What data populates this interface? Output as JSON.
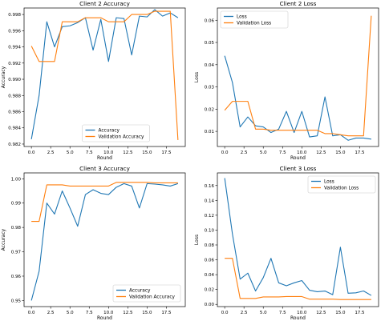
{
  "chart_data": [
    {
      "type": "line",
      "title": "Client 2 Accuracy",
      "xlabel": "Round",
      "ylabel": "Accuracy",
      "xlim": [
        -0.95,
        19.95
      ],
      "ylim": [
        0.9817,
        0.9988
      ],
      "xticks": [
        0.0,
        2.5,
        5.0,
        7.5,
        10.0,
        12.5,
        15.0,
        17.5
      ],
      "yticks": [
        0.982,
        0.984,
        0.986,
        0.988,
        0.99,
        0.992,
        0.994,
        0.996,
        0.998
      ],
      "xtick_labels": [
        "0.0",
        "2.5",
        "5.0",
        "7.5",
        "10.0",
        "12.5",
        "15.0",
        "17.5"
      ],
      "ytick_labels": [
        "0.982",
        "0.984",
        "0.986",
        "0.988",
        "0.990",
        "0.992",
        "0.994",
        "0.996",
        "0.998"
      ],
      "legend": "lower-center",
      "x": [
        0,
        1,
        2,
        3,
        4,
        5,
        6,
        7,
        8,
        9,
        10,
        11,
        12,
        13,
        14,
        15,
        16,
        17,
        18,
        19
      ],
      "series": [
        {
          "name": "Accuracy",
          "color": "#1f77b4",
          "values": [
            0.9826,
            0.988,
            0.9971,
            0.994,
            0.9965,
            0.9966,
            0.997,
            0.9976,
            0.9936,
            0.9974,
            0.9922,
            0.9976,
            0.9975,
            0.993,
            0.9978,
            0.9977,
            0.9986,
            0.9978,
            0.9982,
            0.9976
          ]
        },
        {
          "name": "Validation Accuracy",
          "color": "#ff7f0e",
          "values": [
            0.9941,
            0.9922,
            0.9922,
            0.9922,
            0.9971,
            0.9971,
            0.9971,
            0.9976,
            0.9976,
            0.9976,
            0.9971,
            0.9971,
            0.9971,
            0.998,
            0.998,
            0.998,
            0.9984,
            0.9984,
            0.9984,
            0.9825
          ]
        }
      ]
    },
    {
      "type": "line",
      "title": "Client 2 Loss",
      "xlabel": "Round",
      "ylabel": "Loss",
      "xlim": [
        -0.95,
        19.95
      ],
      "ylim": [
        0.0032,
        0.0655
      ],
      "xticks": [
        0.0,
        2.5,
        5.0,
        7.5,
        10.0,
        12.5,
        15.0,
        17.5
      ],
      "yticks": [
        0.01,
        0.02,
        0.03,
        0.04,
        0.05,
        0.06
      ],
      "xtick_labels": [
        "0.0",
        "2.5",
        "5.0",
        "7.5",
        "10.0",
        "12.5",
        "15.0",
        "17.5"
      ],
      "ytick_labels": [
        "0.01",
        "0.02",
        "0.03",
        "0.04",
        "0.05",
        "0.06"
      ],
      "legend": "top-left",
      "x": [
        0,
        1,
        2,
        3,
        4,
        5,
        6,
        7,
        8,
        9,
        10,
        11,
        12,
        13,
        14,
        15,
        16,
        17,
        18,
        19
      ],
      "series": [
        {
          "name": "Loss",
          "color": "#1f77b4",
          "values": [
            0.044,
            0.032,
            0.012,
            0.0165,
            0.0125,
            0.012,
            0.0095,
            0.011,
            0.019,
            0.0095,
            0.019,
            0.0075,
            0.008,
            0.0255,
            0.008,
            0.0085,
            0.006,
            0.007,
            0.007,
            0.0065
          ]
        },
        {
          "name": "Validation Loss",
          "color": "#ff7f0e",
          "values": [
            0.0195,
            0.0235,
            0.0235,
            0.0235,
            0.011,
            0.011,
            0.0105,
            0.0105,
            0.0105,
            0.0105,
            0.0105,
            0.0105,
            0.0105,
            0.009,
            0.009,
            0.0085,
            0.008,
            0.008,
            0.008,
            0.062
          ]
        }
      ]
    },
    {
      "type": "line",
      "title": "Client 3 Accuracy",
      "xlabel": "Round",
      "ylabel": "Accuracy",
      "xlim": [
        -0.95,
        19.95
      ],
      "ylim": [
        0.9475,
        1.0024
      ],
      "xticks": [
        0.0,
        2.5,
        5.0,
        7.5,
        10.0,
        12.5,
        15.0,
        17.5
      ],
      "yticks": [
        0.95,
        0.96,
        0.97,
        0.98,
        0.99,
        1.0
      ],
      "xtick_labels": [
        "0.0",
        "2.5",
        "5.0",
        "7.5",
        "10.0",
        "12.5",
        "15.0",
        "17.5"
      ],
      "ytick_labels": [
        "0.95",
        "0.96",
        "0.97",
        "0.98",
        "0.99",
        "1.00"
      ],
      "legend": "lower-right",
      "x": [
        0,
        1,
        2,
        3,
        4,
        5,
        6,
        7,
        8,
        9,
        10,
        11,
        12,
        13,
        14,
        15,
        16,
        17,
        18,
        19
      ],
      "series": [
        {
          "name": "Accuracy",
          "color": "#1f77b4",
          "values": [
            0.95,
            0.962,
            0.99,
            0.9855,
            0.995,
            0.988,
            0.9805,
            0.9935,
            0.9955,
            0.994,
            0.9935,
            0.9965,
            0.998,
            0.997,
            0.988,
            0.998,
            0.9978,
            0.9975,
            0.997,
            0.998
          ]
        },
        {
          "name": "Validation Accuracy",
          "color": "#ff7f0e",
          "values": [
            0.9825,
            0.9825,
            0.9975,
            0.9975,
            0.9975,
            0.997,
            0.997,
            0.997,
            0.997,
            0.997,
            0.997,
            0.9985,
            0.9985,
            0.9985,
            0.9985,
            0.9985,
            0.9983,
            0.9983,
            0.9983,
            0.9983
          ]
        }
      ]
    },
    {
      "type": "line",
      "title": "Client 3 Loss",
      "xlabel": "Round",
      "ylabel": "Loss",
      "xlim": [
        -0.95,
        19.95
      ],
      "ylim": [
        -0.003,
        0.177
      ],
      "xticks": [
        0.0,
        2.5,
        5.0,
        7.5,
        10.0,
        12.5,
        15.0,
        17.5
      ],
      "yticks": [
        0.0,
        0.02,
        0.04,
        0.06,
        0.08,
        0.1,
        0.12,
        0.14,
        0.16
      ],
      "xtick_labels": [
        "0.0",
        "2.5",
        "5.0",
        "7.5",
        "10.0",
        "12.5",
        "15.0",
        "17.5"
      ],
      "ytick_labels": [
        "0.00",
        "0.02",
        "0.04",
        "0.06",
        "0.08",
        "0.10",
        "0.12",
        "0.14",
        "0.16"
      ],
      "legend": "top-right",
      "x": [
        0,
        1,
        2,
        3,
        4,
        5,
        6,
        7,
        8,
        9,
        10,
        11,
        12,
        13,
        14,
        15,
        16,
        17,
        18,
        19
      ],
      "series": [
        {
          "name": "Loss",
          "color": "#1f77b4",
          "values": [
            0.17,
            0.095,
            0.034,
            0.042,
            0.018,
            0.036,
            0.062,
            0.029,
            0.025,
            0.029,
            0.032,
            0.019,
            0.017,
            0.018,
            0.013,
            0.077,
            0.015,
            0.0155,
            0.018,
            0.012
          ]
        },
        {
          "name": "Validation Loss",
          "color": "#ff7f0e",
          "values": [
            0.062,
            0.062,
            0.008,
            0.008,
            0.008,
            0.01,
            0.01,
            0.01,
            0.0105,
            0.0105,
            0.0105,
            0.007,
            0.007,
            0.007,
            0.007,
            0.0065,
            0.0065,
            0.0065,
            0.0065,
            0.0065
          ]
        }
      ]
    }
  ]
}
